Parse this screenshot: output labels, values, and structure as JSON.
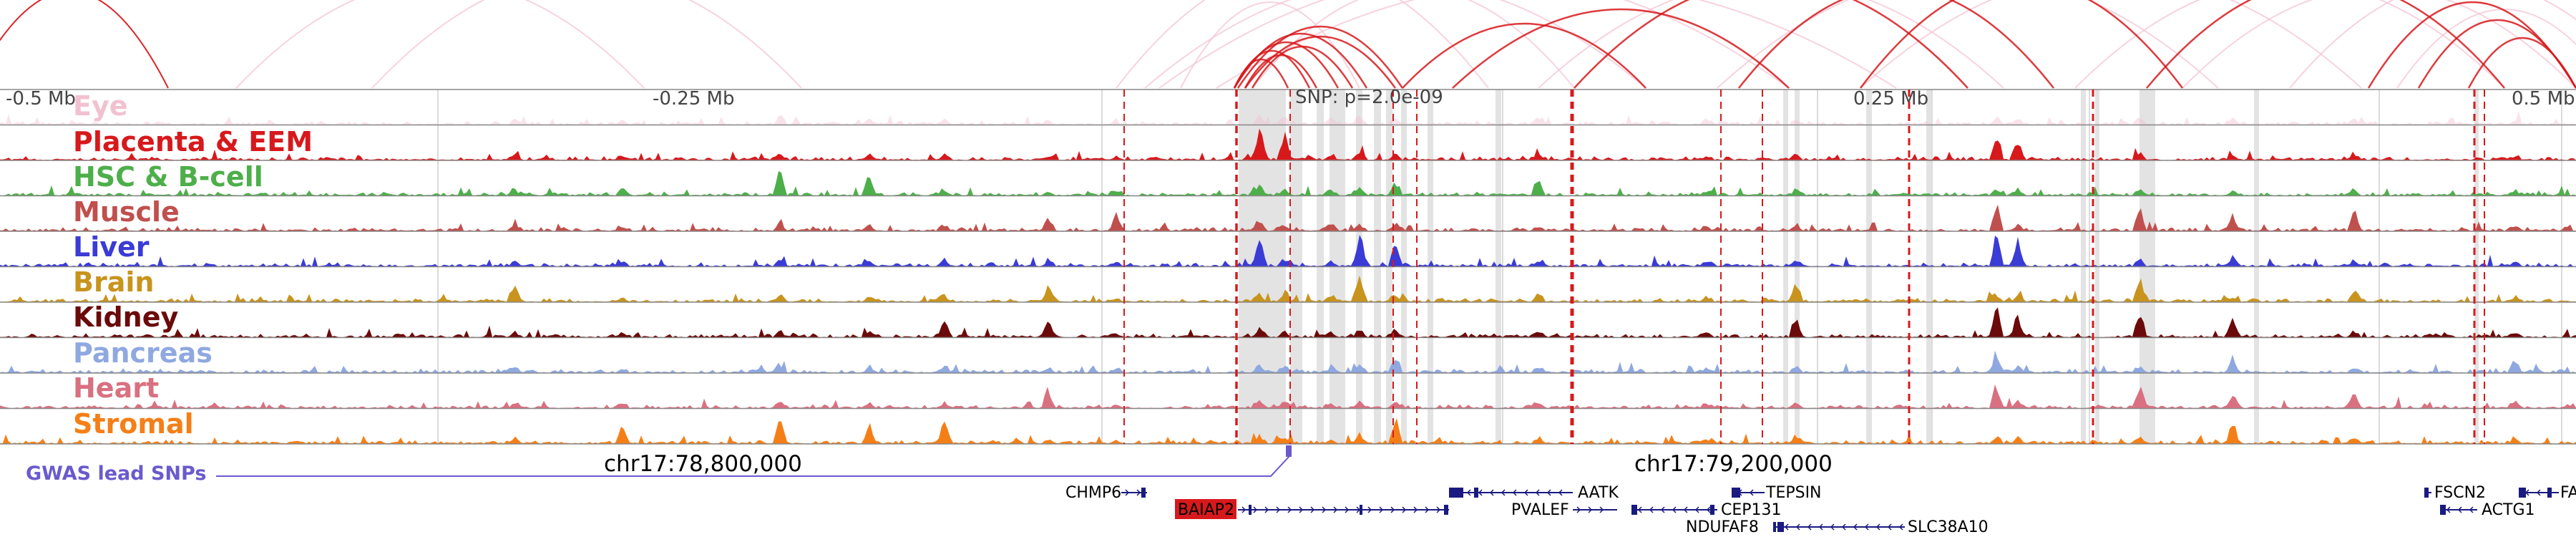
{
  "browser": {
    "scale_labels": [
      "-0.5 Mb",
      "-0.25 Mb",
      "0.25 Mb",
      "0.5 Mb"
    ],
    "snp_label": "SNP: p=2.0e-09",
    "coordinate_labels": [
      "chr17:78,800,000",
      "chr17:79,200,000"
    ],
    "gwas_label": "GWAS lead SNPs",
    "tracks": [
      {
        "label": "Eye",
        "color": "#f2c1d0",
        "faded": true
      },
      {
        "label": "Placenta & EEM",
        "color": "#d7191c"
      },
      {
        "label": "HSC & B-cell",
        "color": "#4daf4a"
      },
      {
        "label": "Muscle",
        "color": "#c0504d"
      },
      {
        "label": "Liver",
        "color": "#3b3bd6"
      },
      {
        "label": "Brain",
        "color": "#c8941e"
      },
      {
        "label": "Kidney",
        "color": "#6b0a0a"
      },
      {
        "label": "Pancreas",
        "color": "#8fa8e0"
      },
      {
        "label": "Heart",
        "color": "#d97080"
      },
      {
        "label": "Stromal",
        "color": "#f57f17"
      }
    ],
    "genes": [
      {
        "name": "CHMP6",
        "highlight": false
      },
      {
        "name": "AATK",
        "highlight": false
      },
      {
        "name": "TEPSIN",
        "highlight": false
      },
      {
        "name": "FSCN2",
        "highlight": false
      },
      {
        "name": "FA",
        "highlight": false
      },
      {
        "name": "BAIAP2",
        "highlight": true
      },
      {
        "name": "PVALEF",
        "highlight": false
      },
      {
        "name": "CEP131",
        "highlight": false
      },
      {
        "name": "ACTG1",
        "highlight": false
      },
      {
        "name": "NDUFAF8",
        "highlight": false
      },
      {
        "name": "SLC38A10",
        "highlight": false
      }
    ],
    "colors": {
      "arc_strong": "#d7191c",
      "arc_faint": "#f2c1d0",
      "gwas": "#6a5acd",
      "gene_model": "#1a1a80",
      "highlight_bg": "#d7191c",
      "shade": "#d9d9d9",
      "dashed_marker": "#d7191c"
    }
  }
}
